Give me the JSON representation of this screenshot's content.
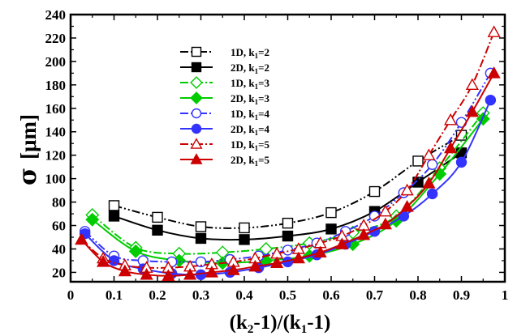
{
  "chart_data": {
    "type": "line",
    "title": "",
    "xlabel": "(k2-1)/(k1-1)",
    "xlabel_parts": {
      "p1": "(k",
      "sub1": "2",
      "p2": "-1)/(k",
      "sub2": "1",
      "p3": "-1)"
    },
    "ylabel": "σ [μm]",
    "ylabel_parts": {
      "sigma": "σ",
      "unit": "[μm]"
    },
    "xlim": [
      0,
      1
    ],
    "ylim": [
      12,
      240
    ],
    "x_ticks": [
      0,
      0.1,
      0.2,
      0.3,
      0.4,
      0.5,
      0.6,
      0.7,
      0.8,
      0.9,
      1
    ],
    "x_tick_labels": [
      "0",
      "0.1",
      "0.2",
      "0.3",
      "0.4",
      "0.5",
      "0.6",
      "0.7",
      "0.8",
      "0.9",
      "1"
    ],
    "y_ticks": [
      20,
      40,
      60,
      80,
      100,
      120,
      140,
      160,
      180,
      200,
      220,
      240
    ],
    "y_tick_labels": [
      "20",
      "40",
      "60",
      "80",
      "100",
      "120",
      "140",
      "160",
      "180",
      "200",
      "220",
      "240"
    ],
    "legend_position": "upper-left",
    "series": [
      {
        "name": "1D, k1=2",
        "label_main": "1D, k",
        "label_sub": "1",
        "label_eq": "=2",
        "color": "#000000",
        "dash": "dashdotdot",
        "marker": "square",
        "filled": false,
        "x": [
          0.1,
          0.2,
          0.3,
          0.4,
          0.5,
          0.6,
          0.7,
          0.8,
          0.9
        ],
        "y": [
          77,
          67,
          59,
          58,
          62,
          71,
          89,
          115,
          137
        ]
      },
      {
        "name": "2D, k1=2",
        "label_main": "2D, k",
        "label_sub": "1",
        "label_eq": "=2",
        "color": "#000000",
        "dash": "solid",
        "marker": "square",
        "filled": true,
        "x": [
          0.1,
          0.2,
          0.3,
          0.4,
          0.5,
          0.6,
          0.7,
          0.8,
          0.9
        ],
        "y": [
          68,
          56,
          49,
          48,
          51,
          57,
          72,
          97,
          122
        ]
      },
      {
        "name": "1D, k1=3",
        "label_main": "1D, k",
        "label_sub": "1",
        "label_eq": "=3",
        "color": "#00cc00",
        "dash": "dashdot",
        "marker": "diamond",
        "filled": false,
        "x": [
          0.05,
          0.15,
          0.25,
          0.35,
          0.45,
          0.55,
          0.65,
          0.75,
          0.85,
          0.95
        ],
        "y": [
          69,
          41,
          36,
          37,
          40,
          45,
          54,
          68,
          109,
          156
        ]
      },
      {
        "name": "2D, k1=3",
        "label_main": "2D, k",
        "label_sub": "1",
        "label_eq": "=3",
        "color": "#00cc00",
        "dash": "solid",
        "marker": "diamond",
        "filled": true,
        "x": [
          0.05,
          0.15,
          0.25,
          0.35,
          0.45,
          0.55,
          0.65,
          0.75,
          0.85,
          0.95
        ],
        "y": [
          65,
          38,
          30,
          28,
          30,
          34,
          44,
          64,
          104,
          151
        ]
      },
      {
        "name": "1D, k1=4",
        "label_main": "1D, k",
        "label_sub": "1",
        "label_eq": "=4",
        "color": "#3333ff",
        "dash": "dashdotdot",
        "marker": "circle",
        "filled": false,
        "x": [
          0.033,
          0.1,
          0.167,
          0.233,
          0.3,
          0.367,
          0.433,
          0.5,
          0.567,
          0.633,
          0.7,
          0.767,
          0.833,
          0.9,
          0.967
        ],
        "y": [
          55,
          34,
          30,
          29,
          29,
          31,
          34,
          39,
          45,
          55,
          68,
          88,
          112,
          148,
          190
        ]
      },
      {
        "name": "2D, k1=4",
        "label_main": "2D, k",
        "label_sub": "1",
        "label_eq": "=4",
        "color": "#3333ff",
        "dash": "solid",
        "marker": "circle",
        "filled": true,
        "x": [
          0.033,
          0.1,
          0.167,
          0.233,
          0.3,
          0.367,
          0.433,
          0.5,
          0.567,
          0.633,
          0.7,
          0.767,
          0.833,
          0.9,
          0.967
        ],
        "y": [
          53,
          30,
          23,
          19,
          18,
          20,
          24,
          29,
          35,
          44,
          55,
          68,
          87,
          114,
          167
        ]
      },
      {
        "name": "1D, k1=5",
        "label_main": "1D, k",
        "label_sub": "1",
        "label_eq": "=5",
        "color": "#cc0000",
        "dash": "dashdot",
        "marker": "triangle",
        "filled": false,
        "x": [
          0.025,
          0.075,
          0.125,
          0.175,
          0.225,
          0.275,
          0.325,
          0.375,
          0.425,
          0.475,
          0.525,
          0.575,
          0.625,
          0.675,
          0.725,
          0.775,
          0.825,
          0.875,
          0.925,
          0.975
        ],
        "y": [
          48,
          32,
          26,
          24,
          24,
          25,
          27,
          29,
          32,
          36,
          40,
          45,
          51,
          60,
          72,
          90,
          120,
          150,
          180,
          225
        ]
      },
      {
        "name": "2D, k1=5",
        "label_main": "2D, k",
        "label_sub": "1",
        "label_eq": "=5",
        "color": "#cc0000",
        "dash": "solid",
        "marker": "triangle",
        "filled": true,
        "x": [
          0.025,
          0.075,
          0.125,
          0.175,
          0.225,
          0.275,
          0.325,
          0.375,
          0.425,
          0.475,
          0.525,
          0.575,
          0.625,
          0.675,
          0.725,
          0.775,
          0.825,
          0.875,
          0.925,
          0.975
        ],
        "y": [
          48,
          29,
          21,
          18,
          17,
          18,
          20,
          22,
          25,
          28,
          32,
          37,
          44,
          52,
          61,
          76,
          96,
          126,
          157,
          190
        ]
      }
    ]
  }
}
